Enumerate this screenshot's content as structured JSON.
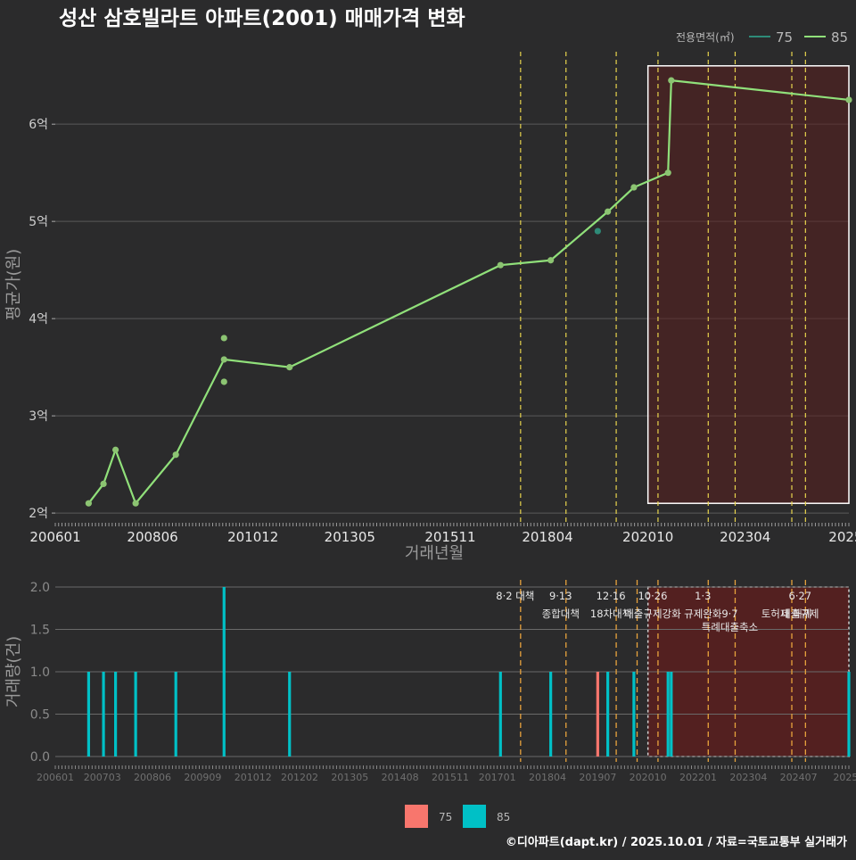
{
  "title": "성산 삼호빌라트 아파트(2001) 매매가격 변화",
  "footer": "©디아파트(dapt.kr) / 2025.10.01 / 자료=국토교통부 실거래가",
  "colors": {
    "background": "#2b2b2c",
    "line85": "#90e07a",
    "point75": "#2e8b78",
    "bar85": "#00c0c6",
    "bar75": "#f8766d",
    "highlight_fill": "#5a1f1f",
    "policy_yellow": "#e8d44d",
    "policy_orange": "#e8a33d"
  },
  "legend_top": {
    "title": "전용면적(㎡)",
    "items": [
      {
        "label": "75",
        "color": "#2e8b78"
      },
      {
        "label": "85",
        "color": "#90e07a"
      }
    ]
  },
  "legend_bottom": {
    "items": [
      {
        "label": "75",
        "color": "#f8766d"
      },
      {
        "label": "85",
        "color": "#00c0c6"
      }
    ]
  },
  "chart_data": [
    {
      "type": "line",
      "title": "성산 삼호빌라트 아파트(2001) 매매가격 변화",
      "xlabel": "거래년월",
      "ylabel": "평균가(원)",
      "xlim": [
        2006.0,
        2025.75
      ],
      "ylim": [
        1.9,
        6.8
      ],
      "x_ticks": [
        {
          "x": 2006.0,
          "label": "200601"
        },
        {
          "x": 2008.42,
          "label": "200806"
        },
        {
          "x": 2010.92,
          "label": "201012"
        },
        {
          "x": 2013.33,
          "label": "201305"
        },
        {
          "x": 2015.83,
          "label": "201511"
        },
        {
          "x": 2018.25,
          "label": "201804"
        },
        {
          "x": 2020.75,
          "label": "202010"
        },
        {
          "x": 2023.17,
          "label": "202304"
        },
        {
          "x": 2025.67,
          "label": "2025"
        }
      ],
      "y_ticks": [
        {
          "y": 2,
          "label": "2억"
        },
        {
          "y": 3,
          "label": "3억"
        },
        {
          "y": 4,
          "label": "4억"
        },
        {
          "y": 5,
          "label": "5억"
        },
        {
          "y": 6,
          "label": "6억"
        }
      ],
      "highlight_range": {
        "x": [
          2020.75,
          2025.75
        ],
        "y": [
          2.1,
          6.6
        ]
      },
      "policy_lines": [
        2017.58,
        2018.71,
        2019.96,
        2021.0,
        2022.25,
        2022.92,
        2024.33,
        2024.67
      ],
      "series": [
        {
          "name": "85",
          "type": "line",
          "x": [
            2006.83,
            2007.2,
            2007.5,
            2008.0,
            2009.0,
            2010.2,
            2011.83,
            2017.08,
            2018.33,
            2019.75,
            2020.4,
            2021.25,
            2021.33,
            2025.75
          ],
          "y": [
            2.1,
            2.3,
            2.65,
            2.1,
            2.6,
            3.58,
            3.5,
            4.55,
            4.6,
            5.1,
            5.35,
            5.5,
            6.45,
            6.25
          ]
        },
        {
          "name": "85",
          "type": "scatter",
          "x": [
            2010.2,
            2010.2
          ],
          "y": [
            3.8,
            3.35
          ]
        },
        {
          "name": "75",
          "type": "scatter",
          "x": [
            2019.5
          ],
          "y": [
            4.9
          ]
        }
      ]
    },
    {
      "type": "bar",
      "ylabel": "거래량(건)",
      "xlim": [
        2006.0,
        2025.75
      ],
      "ylim": [
        0,
        2.0
      ],
      "y_ticks": [
        {
          "y": 0.0,
          "label": "0.0"
        },
        {
          "y": 0.5,
          "label": "0.5"
        },
        {
          "y": 1.0,
          "label": "1.0"
        },
        {
          "y": 1.5,
          "label": "1.5"
        },
        {
          "y": 2.0,
          "label": "2.0"
        }
      ],
      "x_ticks": [
        {
          "x": 2006.0,
          "label": "200601"
        },
        {
          "x": 2007.17,
          "label": "200703"
        },
        {
          "x": 2008.42,
          "label": "200806"
        },
        {
          "x": 2009.67,
          "label": "200909"
        },
        {
          "x": 2010.92,
          "label": "201012"
        },
        {
          "x": 2012.08,
          "label": "201202"
        },
        {
          "x": 2013.33,
          "label": "201305"
        },
        {
          "x": 2014.58,
          "label": "201408"
        },
        {
          "x": 2015.83,
          "label": "201511"
        },
        {
          "x": 2017.0,
          "label": "201701"
        },
        {
          "x": 2018.25,
          "label": "201804"
        },
        {
          "x": 2019.5,
          "label": "201907"
        },
        {
          "x": 2020.75,
          "label": "202010"
        },
        {
          "x": 2022.0,
          "label": "202201"
        },
        {
          "x": 2023.25,
          "label": "202304"
        },
        {
          "x": 2024.5,
          "label": "202407"
        },
        {
          "x": 2025.67,
          "label": "2025"
        }
      ],
      "highlight_range": [
        2020.75,
        2025.75
      ],
      "policy_lines": [
        2017.58,
        2018.71,
        2019.96,
        2020.48,
        2021.0,
        2022.25,
        2022.92,
        2024.33,
        2024.67
      ],
      "annotations": [
        {
          "x": 2017.58,
          "line1": "8·2 대책",
          "line2": ""
        },
        {
          "x": 2018.71,
          "line1": "9·13",
          "line2": "종합대책"
        },
        {
          "x": 2019.96,
          "line1": "12·16",
          "line2": "18차대책"
        },
        {
          "x": 2021.0,
          "line1": "10·26",
          "line2": "대출규제강화"
        },
        {
          "x": 2022.25,
          "line1": "1·3",
          "line2": "규제완화"
        },
        {
          "x": 2022.92,
          "line1": "",
          "line2": "9·7"
        },
        {
          "x": 2022.92,
          "line1": "",
          "line2": "특례대출축소"
        },
        {
          "x": 2024.33,
          "line1": "",
          "line2": "토허제 해제"
        },
        {
          "x": 2024.67,
          "line1": "6·27",
          "line2": "대출규제"
        }
      ],
      "series": [
        {
          "name": "85",
          "x": [
            2006.83,
            2007.2,
            2007.5,
            2008.0,
            2009.0,
            2010.2,
            2011.83,
            2017.08,
            2018.33,
            2019.75,
            2020.4,
            2021.25,
            2021.33,
            2025.75
          ],
          "values": [
            1,
            1,
            1,
            1,
            1,
            2,
            1,
            1,
            1,
            1,
            1,
            1,
            1,
            1
          ]
        },
        {
          "name": "75",
          "x": [
            2019.5
          ],
          "values": [
            1
          ]
        }
      ]
    }
  ]
}
